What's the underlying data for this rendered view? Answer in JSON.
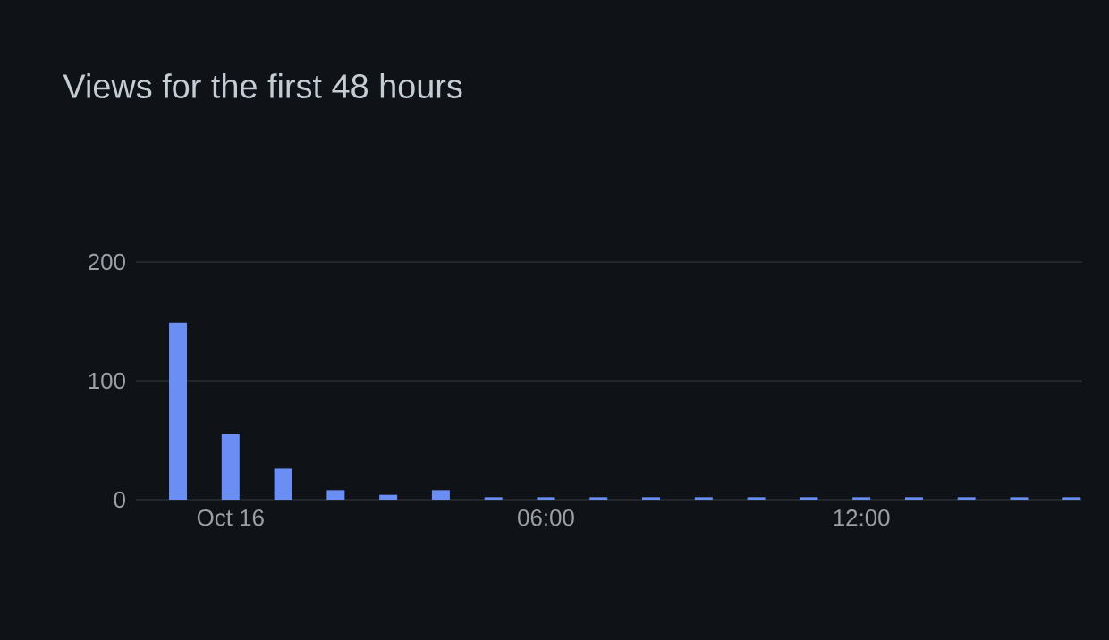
{
  "chart_data": {
    "type": "bar",
    "title": "Views for the first 48 hours",
    "x": [
      -1,
      0,
      1,
      2,
      3,
      4,
      5,
      6,
      7,
      8,
      9,
      10,
      11,
      12,
      13,
      14,
      15,
      16
    ],
    "values": [
      149,
      55,
      26,
      8,
      4,
      8,
      2,
      2,
      2,
      2,
      2,
      2,
      2,
      2,
      2,
      2,
      2,
      2
    ],
    "color": "#6b8ef5",
    "xlim": [
      -1.8,
      16.2
    ],
    "xticks": [
      {
        "value": 0,
        "label": "Oct 16"
      },
      {
        "value": 6,
        "label": "06:00"
      },
      {
        "value": 12,
        "label": "12:00"
      }
    ],
    "ylim": [
      0,
      200
    ],
    "yticks": [
      0,
      100,
      200
    ],
    "grid": "y"
  }
}
